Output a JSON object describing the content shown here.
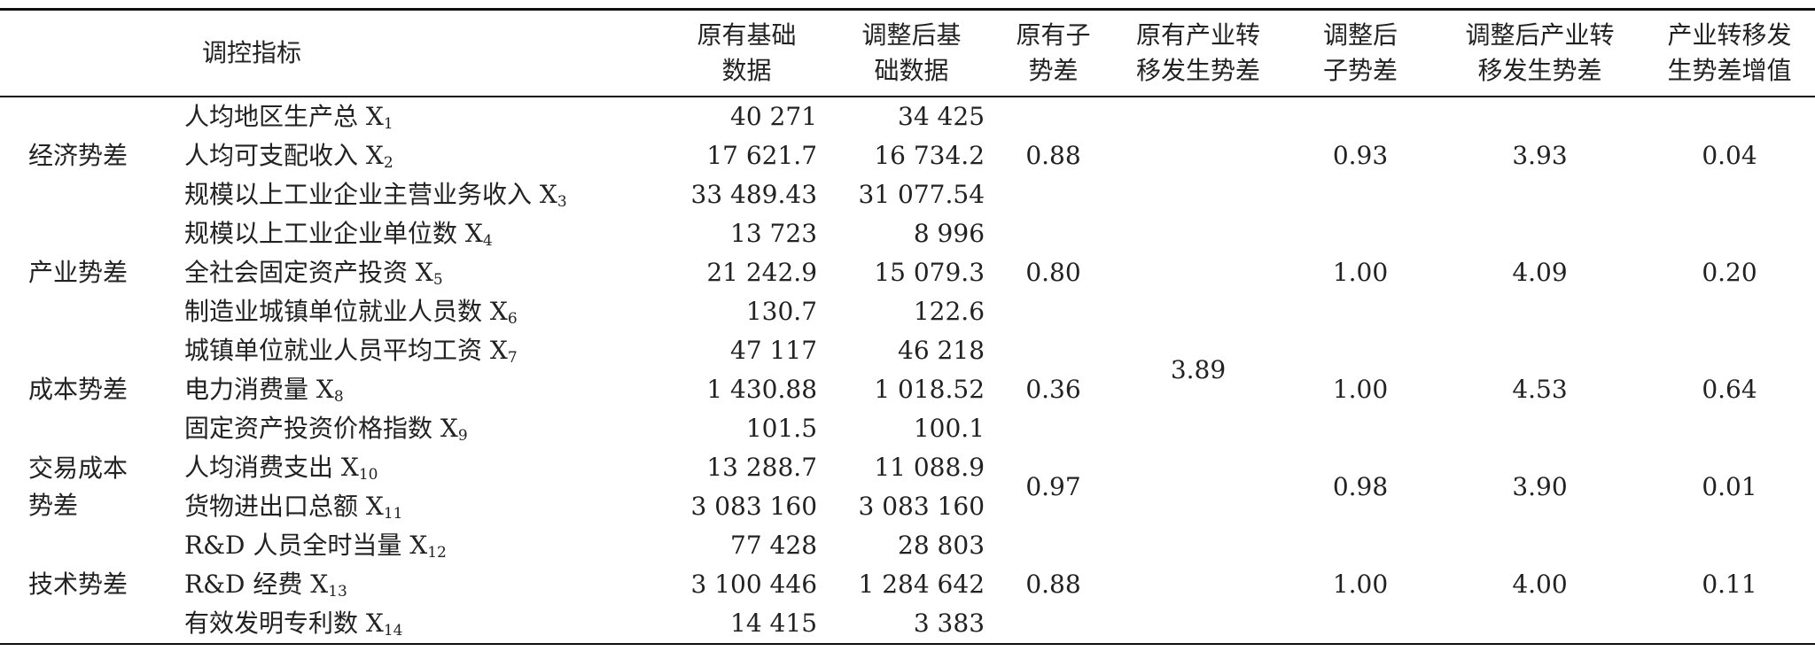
{
  "header": {
    "indicator": "调控指标",
    "columns": [
      [
        "原有基础",
        "数据"
      ],
      [
        "调整后基",
        "础数据"
      ],
      [
        "原有子",
        "势差"
      ],
      [
        "原有产业转",
        "移发生势差"
      ],
      [
        "调整后",
        "子势差"
      ],
      [
        "调整后产业转",
        "移发生势差"
      ],
      [
        "产业转移发",
        "生势差增值"
      ]
    ]
  },
  "original_transfer_gap": "3.89",
  "groups": [
    {
      "name_lines": [
        "经济势差"
      ],
      "original_sub_gap": "0.88",
      "adjusted_sub_gap": "0.93",
      "adjusted_transfer_gap": "3.93",
      "increment": "0.04",
      "rows": [
        {
          "indicator": "人均地区生产总 X",
          "sub": "1",
          "original": "40 271",
          "adjusted": "34 425"
        },
        {
          "indicator": "人均可支配收入 X",
          "sub": "2",
          "original": "17 621.7",
          "adjusted": "16 734.2"
        },
        {
          "indicator": "规模以上工业企业主营业务收入 X",
          "sub": "3",
          "original": "33 489.43",
          "adjusted": "31 077.54"
        }
      ]
    },
    {
      "name_lines": [
        "产业势差"
      ],
      "original_sub_gap": "0.80",
      "adjusted_sub_gap": "1.00",
      "adjusted_transfer_gap": "4.09",
      "increment": "0.20",
      "rows": [
        {
          "indicator": "规模以上工业企业单位数 X",
          "sub": "4",
          "original": "13 723",
          "adjusted": "8 996"
        },
        {
          "indicator": "全社会固定资产投资 X",
          "sub": "5",
          "original": "21 242.9",
          "adjusted": "15 079.3"
        },
        {
          "indicator": "制造业城镇单位就业人员数 X",
          "sub": "6",
          "original": "130.7",
          "adjusted": "122.6"
        }
      ]
    },
    {
      "name_lines": [
        "成本势差"
      ],
      "original_sub_gap": "0.36",
      "adjusted_sub_gap": "1.00",
      "adjusted_transfer_gap": "4.53",
      "increment": "0.64",
      "rows": [
        {
          "indicator": "城镇单位就业人员平均工资 X",
          "sub": "7",
          "original": "47 117",
          "adjusted": "46 218"
        },
        {
          "indicator": "电力消费量 X",
          "sub": "8",
          "original": "1 430.88",
          "adjusted": "1 018.52"
        },
        {
          "indicator": "固定资产投资价格指数 X",
          "sub": "9",
          "original": "101.5",
          "adjusted": "100.1"
        }
      ]
    },
    {
      "name_lines": [
        "交易成本",
        "势差"
      ],
      "original_sub_gap": "0.97",
      "adjusted_sub_gap": "0.98",
      "adjusted_transfer_gap": "3.90",
      "increment": "0.01",
      "rows": [
        {
          "indicator": "人均消费支出 X",
          "sub": "10",
          "original": "13 288.7",
          "adjusted": "11 088.9"
        },
        {
          "indicator": "货物进出口总额 X",
          "sub": "11",
          "original": "3 083 160",
          "adjusted": "3 083 160"
        }
      ]
    },
    {
      "name_lines": [
        "技术势差"
      ],
      "original_sub_gap": "0.88",
      "adjusted_sub_gap": "1.00",
      "adjusted_transfer_gap": "4.00",
      "increment": "0.11",
      "rows": [
        {
          "indicator": "R&D 人员全时当量 X",
          "sub": "12",
          "original": "77 428",
          "adjusted": "28 803"
        },
        {
          "indicator": "R&D 经费 X",
          "sub": "13",
          "original": "3 100 446",
          "adjusted": "1 284 642"
        },
        {
          "indicator": "有效发明专利数 X",
          "sub": "14",
          "original": "14 415",
          "adjusted": "3 383"
        }
      ]
    }
  ]
}
